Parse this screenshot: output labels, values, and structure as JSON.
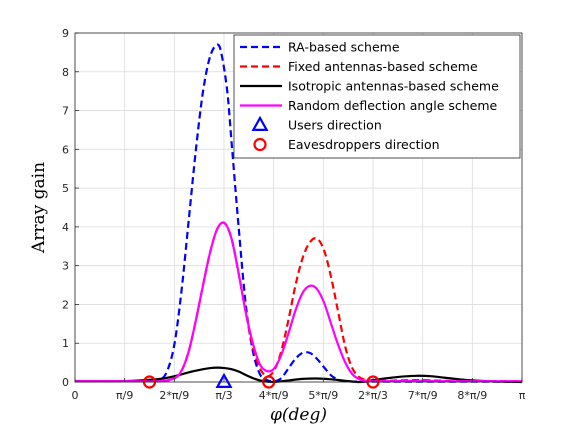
{
  "chart_data": {
    "type": "line",
    "xlabel": "φ(deg)",
    "ylabel": "Array gain",
    "xlim": [
      0,
      3.1416
    ],
    "ylim": [
      0,
      9
    ],
    "yticks": [
      0,
      1,
      2,
      3,
      4,
      5,
      6,
      7,
      8,
      9
    ],
    "xticks": [
      {
        "value": 0,
        "label": "0"
      },
      {
        "value": 0.3491,
        "label": "π/9"
      },
      {
        "value": 0.6981,
        "label": "2*π/9"
      },
      {
        "value": 1.0472,
        "label": "π/3"
      },
      {
        "value": 1.3963,
        "label": "4*π/9"
      },
      {
        "value": 1.7453,
        "label": "5*π/9"
      },
      {
        "value": 2.0944,
        "label": "2*π/3"
      },
      {
        "value": 2.4435,
        "label": "7*π/9"
      },
      {
        "value": 2.7925,
        "label": "8*π/9"
      },
      {
        "value": 3.1416,
        "label": "π"
      }
    ],
    "grid": true,
    "legend_position": "top-right",
    "series": [
      {
        "name": "RA-based scheme",
        "color": "#0000ff",
        "dash": "dashed",
        "x": [
          0,
          0.1,
          0.2,
          0.3,
          0.4,
          0.45,
          0.5,
          0.55,
          0.6,
          0.65,
          0.7,
          0.75,
          0.8,
          0.85,
          0.9,
          0.95,
          1.0,
          1.03,
          1.07,
          1.1,
          1.15,
          1.2,
          1.25,
          1.3,
          1.35,
          1.4,
          1.45,
          1.5,
          1.55,
          1.6,
          1.65,
          1.7,
          1.75,
          1.8,
          1.85,
          1.9,
          1.95,
          2.0,
          2.05,
          2.1,
          2.2,
          2.4,
          2.6,
          2.8,
          3.0,
          3.1416
        ],
        "y": [
          0.02,
          0.02,
          0.02,
          0.02,
          0.02,
          0.02,
          0.02,
          0.03,
          0.05,
          0.3,
          1.0,
          2.4,
          4.2,
          6.0,
          7.5,
          8.4,
          8.7,
          8.45,
          7.5,
          6.2,
          4.0,
          2.0,
          0.8,
          0.2,
          0.05,
          0.02,
          0.1,
          0.35,
          0.6,
          0.75,
          0.75,
          0.6,
          0.38,
          0.17,
          0.06,
          0.02,
          0.01,
          0.01,
          0.01,
          0.01,
          0.01,
          0.01,
          0.01,
          0.01,
          0.01,
          0.01
        ]
      },
      {
        "name": "Fixed antennas-based scheme",
        "color": "#ff0000",
        "dash": "dashed",
        "x": [
          0,
          0.4,
          0.6,
          0.7,
          0.75,
          0.8,
          0.85,
          0.9,
          0.95,
          1.0,
          1.05,
          1.1,
          1.15,
          1.2,
          1.25,
          1.3,
          1.35,
          1.4,
          1.45,
          1.5,
          1.55,
          1.6,
          1.65,
          1.7,
          1.75,
          1.8,
          1.85,
          1.9,
          1.95,
          2.0,
          2.05,
          2.1,
          2.2,
          2.4,
          2.6,
          2.8,
          3.0,
          3.1416
        ],
        "y": [
          0.02,
          0.02,
          0.02,
          0.1,
          0.3,
          0.8,
          1.6,
          2.5,
          3.35,
          3.95,
          4.1,
          3.7,
          2.8,
          1.8,
          0.9,
          0.35,
          0.15,
          0.3,
          0.8,
          1.6,
          2.5,
          3.2,
          3.6,
          3.7,
          3.4,
          2.7,
          1.8,
          0.9,
          0.35,
          0.12,
          0.05,
          0.02,
          0.03,
          0.05,
          0.03,
          0.02,
          0.02,
          0.02
        ]
      },
      {
        "name": "Isotropic antennas-based scheme",
        "color": "#000000",
        "dash": "solid",
        "x": [
          0,
          0.2,
          0.4,
          0.5,
          0.6,
          0.7,
          0.8,
          0.9,
          0.95,
          1.0,
          1.05,
          1.1,
          1.15,
          1.2,
          1.25,
          1.3,
          1.35,
          1.4,
          1.5,
          1.6,
          1.7,
          1.8,
          1.9,
          2.0,
          2.05,
          2.1,
          2.2,
          2.3,
          2.4,
          2.5,
          2.6,
          2.7,
          2.8,
          2.9,
          3.0,
          3.1416
        ],
        "y": [
          0.02,
          0.02,
          0.03,
          0.05,
          0.08,
          0.15,
          0.25,
          0.33,
          0.36,
          0.37,
          0.36,
          0.33,
          0.27,
          0.18,
          0.1,
          0.04,
          0.01,
          0.0,
          0.04,
          0.08,
          0.09,
          0.07,
          0.03,
          0.0,
          0.02,
          0.05,
          0.1,
          0.14,
          0.16,
          0.15,
          0.11,
          0.07,
          0.04,
          0.02,
          0.01,
          0.0
        ]
      },
      {
        "name": "Random deflection angle scheme",
        "color": "#ff00ff",
        "dash": "solid",
        "x": [
          0,
          0.4,
          0.6,
          0.7,
          0.75,
          0.8,
          0.85,
          0.9,
          0.95,
          1.0,
          1.05,
          1.1,
          1.15,
          1.2,
          1.25,
          1.3,
          1.35,
          1.4,
          1.45,
          1.5,
          1.55,
          1.6,
          1.65,
          1.7,
          1.75,
          1.8,
          1.85,
          1.9,
          1.95,
          2.0,
          2.05,
          2.1,
          2.2,
          2.4,
          2.6,
          2.8,
          3.0,
          3.1416
        ],
        "y": [
          0.02,
          0.02,
          0.02,
          0.1,
          0.3,
          0.8,
          1.6,
          2.5,
          3.35,
          3.95,
          4.1,
          3.7,
          2.8,
          1.8,
          1.0,
          0.45,
          0.28,
          0.35,
          0.7,
          1.25,
          1.85,
          2.3,
          2.48,
          2.4,
          2.05,
          1.5,
          0.95,
          0.5,
          0.2,
          0.07,
          0.03,
          0.02,
          0.02,
          0.03,
          0.02,
          0.02,
          0.02,
          0.02
        ]
      },
      {
        "name": "Users direction",
        "color": "#0000ff",
        "marker": "triangle",
        "x": [
          1.0472
        ],
        "y": [
          0
        ]
      },
      {
        "name": "Eavesdroppers direction",
        "color": "#ff0000",
        "marker": "circle",
        "x": [
          0.5236,
          1.3614,
          2.0944
        ],
        "y": [
          0,
          0,
          0
        ]
      }
    ]
  }
}
